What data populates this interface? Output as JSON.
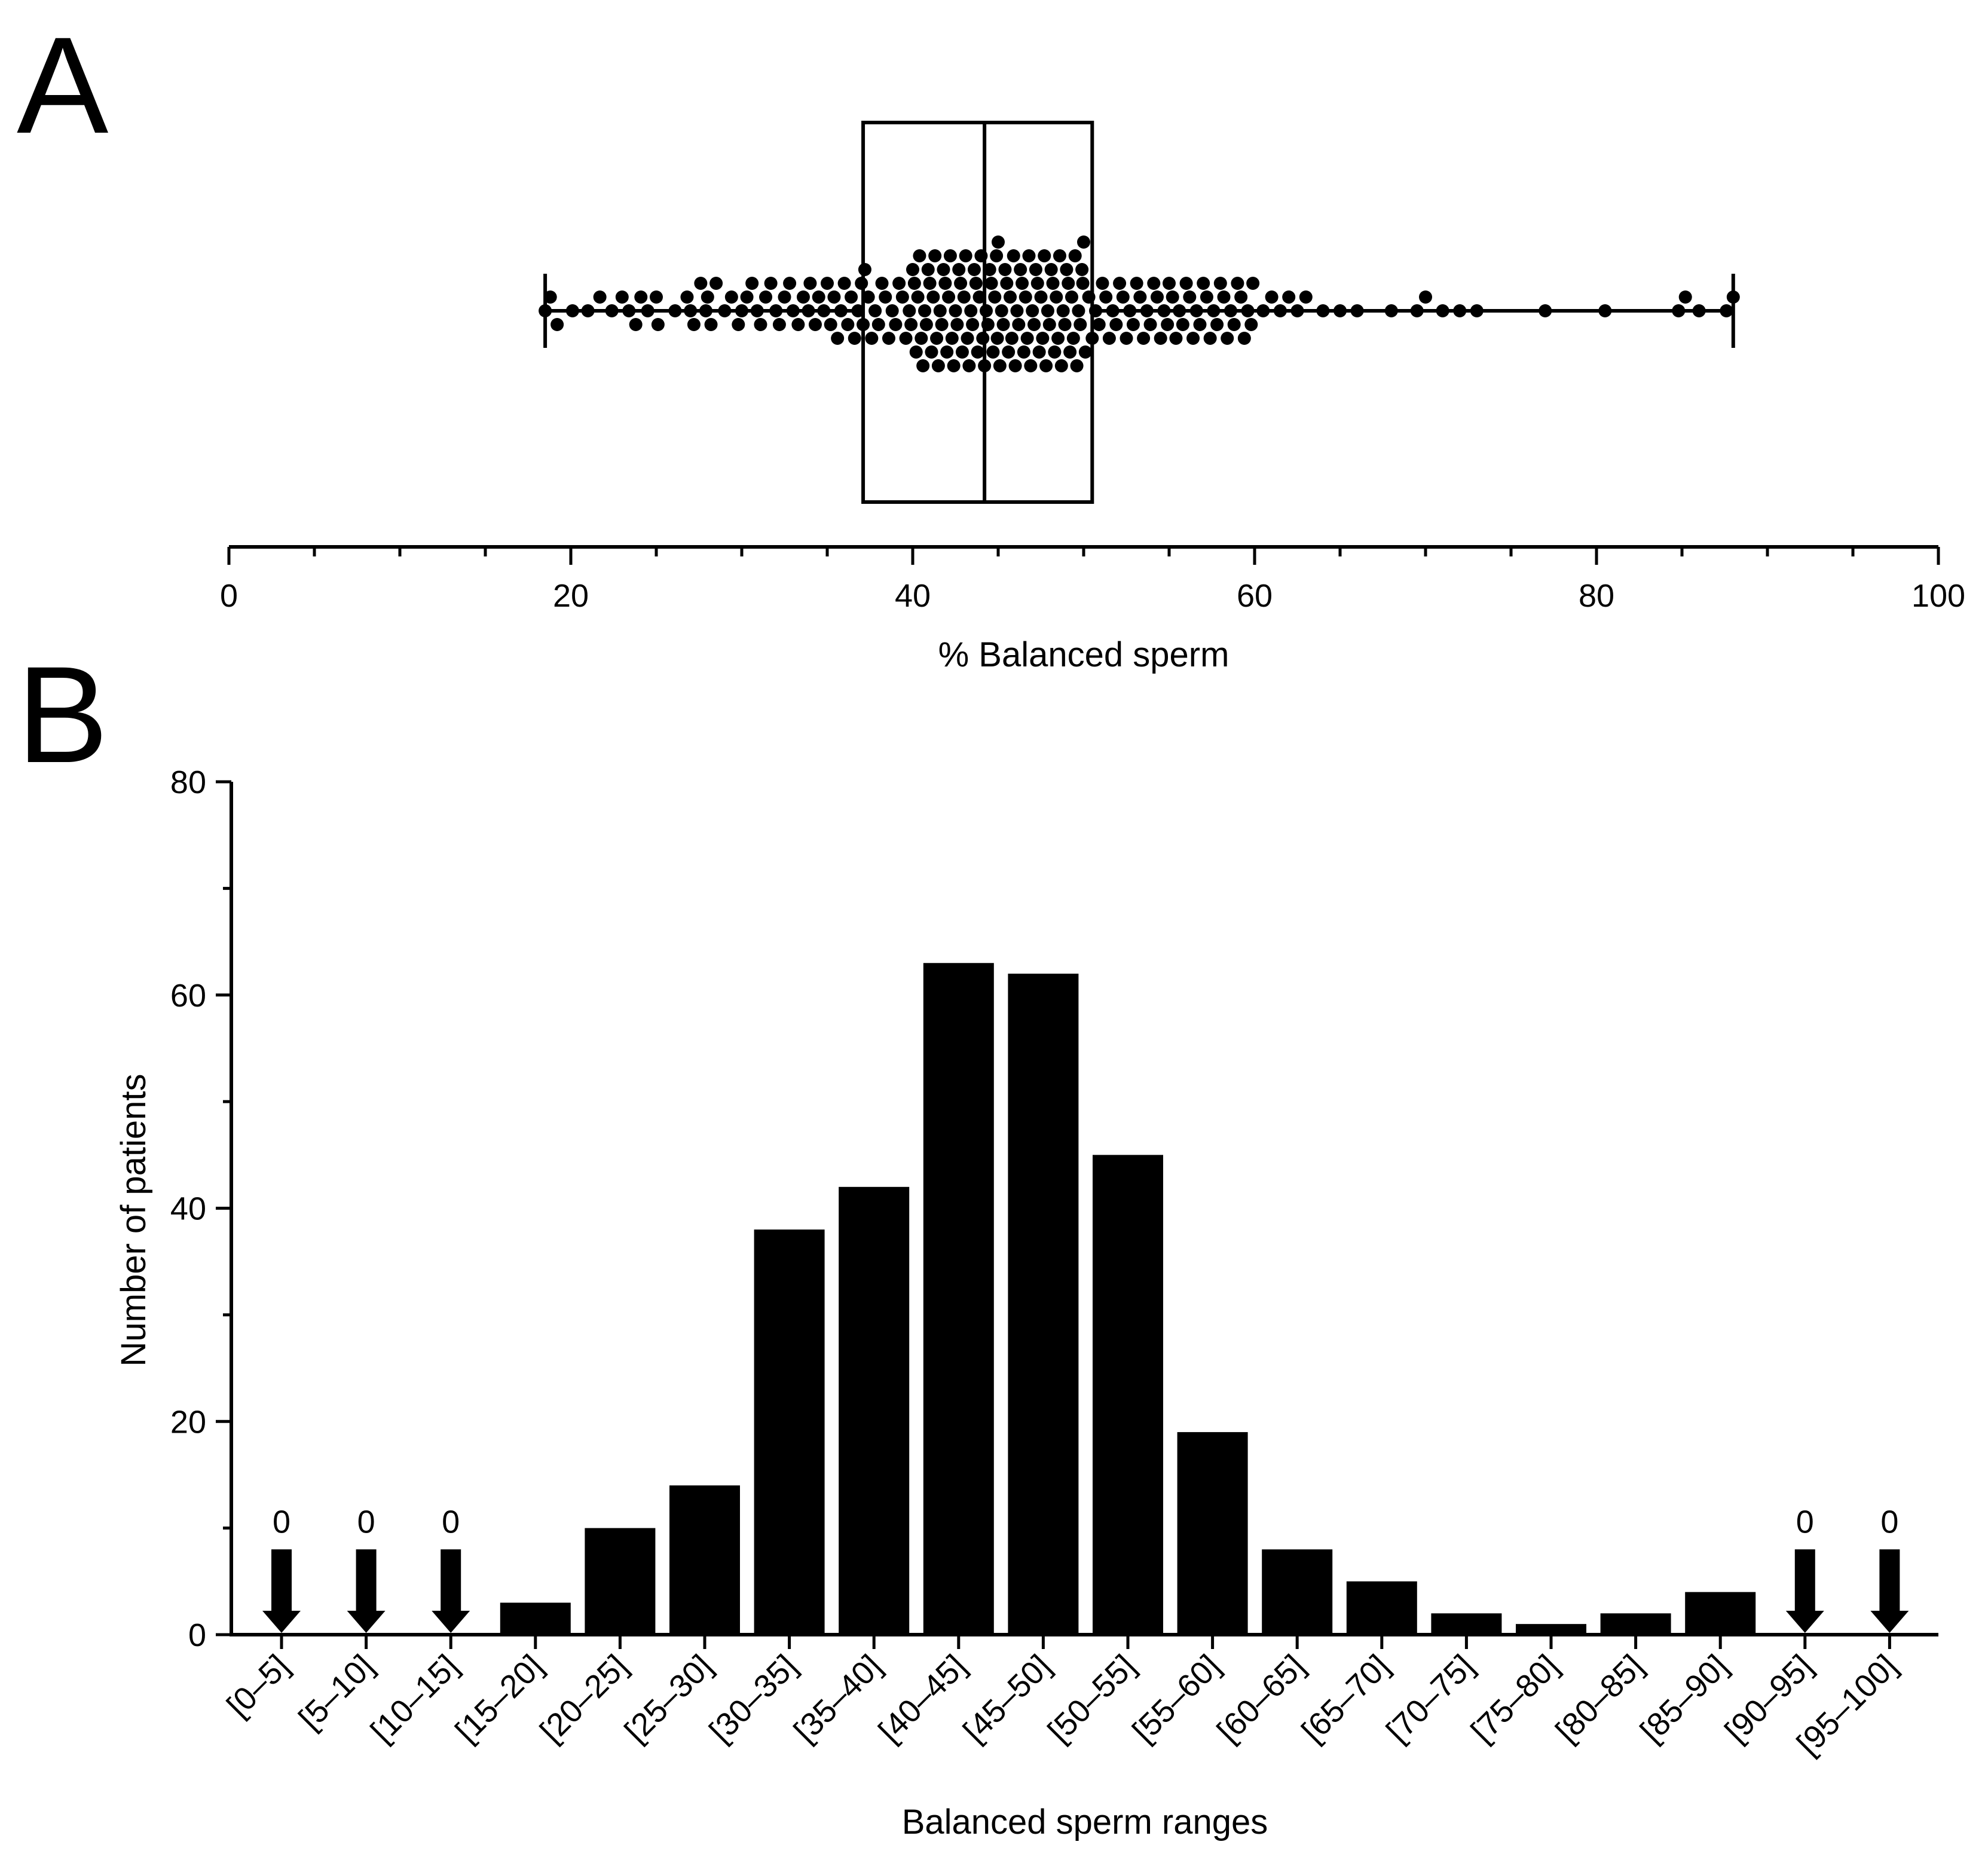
{
  "figure": {
    "background": "#ffffff",
    "ink": "#000000"
  },
  "chart_data": [
    {
      "panel": "A",
      "type": "scatter",
      "subtype": "beeswarm with box-and-whisker",
      "xlabel": "% Balanced sperm",
      "xlim": [
        0,
        100
      ],
      "xticks": [
        0,
        20,
        40,
        60,
        80,
        100
      ],
      "tick_labels": [
        "0",
        "20",
        "40",
        "60",
        "80",
        "100"
      ],
      "box": {
        "min": 18.5,
        "q1": 37.1,
        "median": 44.2,
        "q3": 50.5,
        "max": 88.0
      },
      "values": [
        18.5,
        18.8,
        19.2,
        20.1,
        21.0,
        21.7,
        22.4,
        23.0,
        23.4,
        23.8,
        24.1,
        24.5,
        25.0,
        25.1,
        26.1,
        26.8,
        27.0,
        27.2,
        27.6,
        27.9,
        28.0,
        28.2,
        28.5,
        29.0,
        29.4,
        29.8,
        30.0,
        30.3,
        30.6,
        30.9,
        31.1,
        31.4,
        31.7,
        32.0,
        32.2,
        32.5,
        32.8,
        33.0,
        33.3,
        33.6,
        33.9,
        34.0,
        34.3,
        34.5,
        34.8,
        35.0,
        35.2,
        35.4,
        35.6,
        35.8,
        36.0,
        36.2,
        36.4,
        36.6,
        36.8,
        37.0,
        37.1,
        37.2,
        37.4,
        37.6,
        37.8,
        38.0,
        38.2,
        38.4,
        38.6,
        38.8,
        39.0,
        39.2,
        39.4,
        39.6,
        39.8,
        39.9,
        40.0,
        40.1,
        40.2,
        40.3,
        40.4,
        40.5,
        40.6,
        40.7,
        40.8,
        40.9,
        41.0,
        41.1,
        41.2,
        41.3,
        41.4,
        41.5,
        41.6,
        41.7,
        41.8,
        41.9,
        42.0,
        42.1,
        42.2,
        42.3,
        42.4,
        42.5,
        42.6,
        42.7,
        42.8,
        42.9,
        43.0,
        43.1,
        43.2,
        43.3,
        43.4,
        43.5,
        43.6,
        43.7,
        43.8,
        43.9,
        44.0,
        44.1,
        44.2,
        44.3,
        44.4,
        44.5,
        44.6,
        44.7,
        44.8,
        44.9,
        44.95,
        45.0,
        45.1,
        45.2,
        45.3,
        45.4,
        45.5,
        45.6,
        45.7,
        45.8,
        45.9,
        46.0,
        46.1,
        46.2,
        46.3,
        46.4,
        46.5,
        46.6,
        46.7,
        46.8,
        46.9,
        47.0,
        47.1,
        47.2,
        47.3,
        47.4,
        47.5,
        47.6,
        47.7,
        47.8,
        47.9,
        48.0,
        48.1,
        48.2,
        48.3,
        48.4,
        48.5,
        48.6,
        48.7,
        48.8,
        48.9,
        49.0,
        49.1,
        49.2,
        49.3,
        49.4,
        49.5,
        49.6,
        49.7,
        49.8,
        49.9,
        49.95,
        50.0,
        50.1,
        50.3,
        50.5,
        50.7,
        50.9,
        51.1,
        51.3,
        51.5,
        51.7,
        51.9,
        52.1,
        52.3,
        52.5,
        52.7,
        52.9,
        53.1,
        53.3,
        53.5,
        53.7,
        53.9,
        54.1,
        54.3,
        54.5,
        54.7,
        54.9,
        55.0,
        55.2,
        55.4,
        55.6,
        55.8,
        56.0,
        56.2,
        56.4,
        56.6,
        56.8,
        57.0,
        57.2,
        57.4,
        57.6,
        57.8,
        58.0,
        58.2,
        58.4,
        58.6,
        58.8,
        59.0,
        59.2,
        59.4,
        59.6,
        59.8,
        59.9,
        60.5,
        61.0,
        61.5,
        62.0,
        62.5,
        63.0,
        64.0,
        65.0,
        66.0,
        68.0,
        69.5,
        70.0,
        71.0,
        72.0,
        73.0,
        77.0,
        80.5,
        84.8,
        85.2,
        86.0,
        87.6,
        88.0
      ]
    },
    {
      "panel": "B",
      "type": "bar",
      "xlabel": "Balanced sperm ranges",
      "ylabel": "Number of patients",
      "ylim": [
        0,
        80
      ],
      "yticks": [
        0,
        20,
        40,
        60,
        80
      ],
      "ytick_labels": [
        "0",
        "20",
        "40",
        "60",
        "80"
      ],
      "categories": [
        "[0–5]",
        "[5–10]",
        "[10–15]",
        "[15–20]",
        "[20–25]",
        "[25–30]",
        "[30–35]",
        "[35–40]",
        "[40–45]",
        "[45–50]",
        "[50–55]",
        "[55–60]",
        "[60–65]",
        "[65–70]",
        "[70–75]",
        "[75–80]",
        "[80–85]",
        "[85–90]",
        "[90–95]",
        "[95–100]"
      ],
      "values": [
        0,
        0,
        0,
        3,
        10,
        14,
        38,
        42,
        63,
        62,
        45,
        19,
        8,
        5,
        2,
        1,
        2,
        4,
        0,
        0
      ],
      "zero_marker_label": "0",
      "annotations": [
        "0",
        "0",
        "0",
        "0",
        "0"
      ]
    }
  ]
}
